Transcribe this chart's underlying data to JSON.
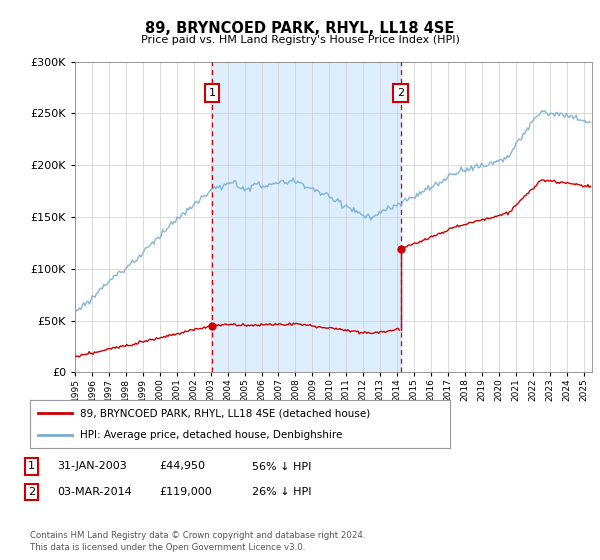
{
  "title": "89, BRYNCOED PARK, RHYL, LL18 4SE",
  "subtitle": "Price paid vs. HM Land Registry's House Price Index (HPI)",
  "sale1_date": "31-JAN-2003",
  "sale1_price": 44950,
  "sale1_year": 2003.08,
  "sale2_date": "03-MAR-2014",
  "sale2_price": 119000,
  "sale2_year": 2014.2,
  "legend_line1": "89, BRYNCOED PARK, RHYL, LL18 4SE (detached house)",
  "legend_line2": "HPI: Average price, detached house, Denbighshire",
  "footer1": "Contains HM Land Registry data © Crown copyright and database right 2024.",
  "footer2": "This data is licensed under the Open Government Licence v3.0.",
  "hpi_color": "#7aadd4",
  "price_color": "#cc0000",
  "shade_color": "#ddeeff",
  "plot_bg": "#ffffff",
  "ylim": [
    0,
    300000
  ],
  "xlim_start": 1995.0,
  "xlim_end": 2025.5
}
